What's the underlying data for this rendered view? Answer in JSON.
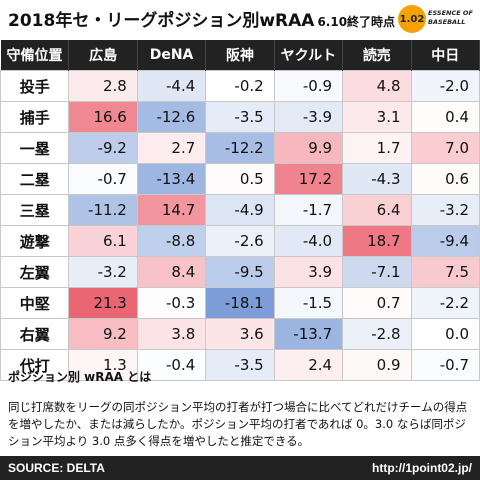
{
  "header": {
    "title": "2018年セ・リーグポジション別wRAA",
    "title_suffix": "6.10終了時点",
    "logo_badge": "1.02",
    "logo_text": "ESSENCE OF BASEBALL"
  },
  "colors": {
    "positive": "#e84b5a",
    "negative": "#4a78c8",
    "header_bg": "#222222",
    "logo": "#f5a100"
  },
  "chart_data": {
    "type": "heatmap",
    "corner_label": "守備位置",
    "columns": [
      "広島",
      "DeNA",
      "阪神",
      "ヤクルト",
      "読売",
      "中日"
    ],
    "rows": [
      {
        "label": "投手",
        "values": [
          "2.8",
          "-4.4",
          "-0.2",
          "-0.9",
          "4.8",
          "-2.0"
        ]
      },
      {
        "label": "捕手",
        "values": [
          "16.6",
          "-12.6",
          "-3.5",
          "-3.9",
          "3.1",
          "0.4"
        ]
      },
      {
        "label": "一塁",
        "values": [
          "-9.2",
          "2.7",
          "-12.2",
          "9.9",
          "1.7",
          "7.0"
        ]
      },
      {
        "label": "二塁",
        "values": [
          "-0.7",
          "-13.4",
          "0.5",
          "17.2",
          "-4.3",
          "0.6"
        ]
      },
      {
        "label": "三塁",
        "values": [
          "-11.2",
          "14.7",
          "-4.9",
          "-1.7",
          "6.4",
          "-3.2"
        ]
      },
      {
        "label": "遊撃",
        "values": [
          "6.1",
          "-8.8",
          "-2.6",
          "-4.0",
          "18.7",
          "-9.4"
        ]
      },
      {
        "label": "左翼",
        "values": [
          "-3.2",
          "8.4",
          "-9.5",
          "3.9",
          "-7.1",
          "7.5"
        ]
      },
      {
        "label": "中堅",
        "values": [
          "21.3",
          "-0.3",
          "-18.1",
          "-1.5",
          "0.7",
          "-2.2"
        ]
      },
      {
        "label": "右翼",
        "values": [
          "9.2",
          "3.8",
          "3.6",
          "-13.7",
          "-2.8",
          "0.0"
        ]
      },
      {
        "label": "代打",
        "values": [
          "1.3",
          "-0.4",
          "-3.5",
          "2.4",
          "0.9",
          "-0.7"
        ]
      }
    ]
  },
  "note": {
    "heading": "ポジション別 wRAA とは",
    "body": "同じ打席数をリーグの同ポジション平均の打者が打つ場合に比べてどれだけチームの得点を増やしたか、または減らしたか。ポジション平均の打者であれば 0。3.0 ならば同ポジション平均より 3.0 点多く得点を増やしたと推定できる。"
  },
  "footer": {
    "source": "SOURCE: DELTA",
    "url": "http://1point02.jp/"
  }
}
